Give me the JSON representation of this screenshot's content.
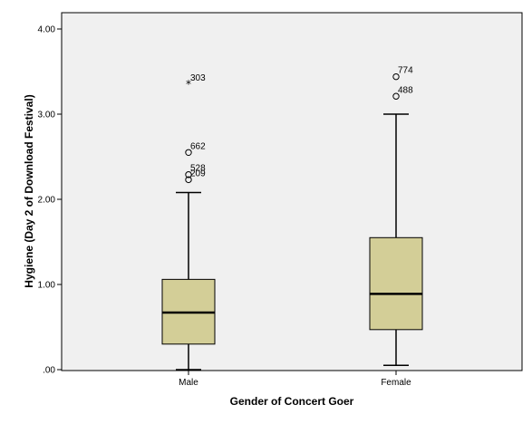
{
  "chart_data": {
    "type": "boxplot",
    "xlabel": "Gender of Concert Goer",
    "ylabel": "Hygiene (Day 2 of Download Festival)",
    "ylim": [
      0,
      4
    ],
    "yticks": [
      {
        "value": 0,
        "label": ".00"
      },
      {
        "value": 1,
        "label": "1.00"
      },
      {
        "value": 2,
        "label": "2.00"
      },
      {
        "value": 3,
        "label": "3.00"
      },
      {
        "value": 4,
        "label": "4.00"
      }
    ],
    "grid": false,
    "box_color": "#d3ce97",
    "background_color": "#f0f0f0",
    "categories": [
      "Male",
      "Female"
    ],
    "boxes": [
      {
        "category": "Male",
        "whisker_low": 0.0,
        "q1": 0.3,
        "median": 0.67,
        "q3": 1.06,
        "whisker_high": 2.08,
        "outliers": [
          {
            "value": 2.23,
            "label": "209",
            "marker": "circle"
          },
          {
            "value": 2.29,
            "label": "528",
            "marker": "circle"
          },
          {
            "value": 2.55,
            "label": "662",
            "marker": "circle"
          },
          {
            "value": 3.35,
            "label": "303",
            "marker": "star"
          }
        ]
      },
      {
        "category": "Female",
        "whisker_low": 0.05,
        "q1": 0.47,
        "median": 0.89,
        "q3": 1.55,
        "whisker_high": 3.0,
        "outliers": [
          {
            "value": 3.21,
            "label": "488",
            "marker": "circle"
          },
          {
            "value": 3.44,
            "label": "774",
            "marker": "circle"
          }
        ]
      }
    ]
  }
}
